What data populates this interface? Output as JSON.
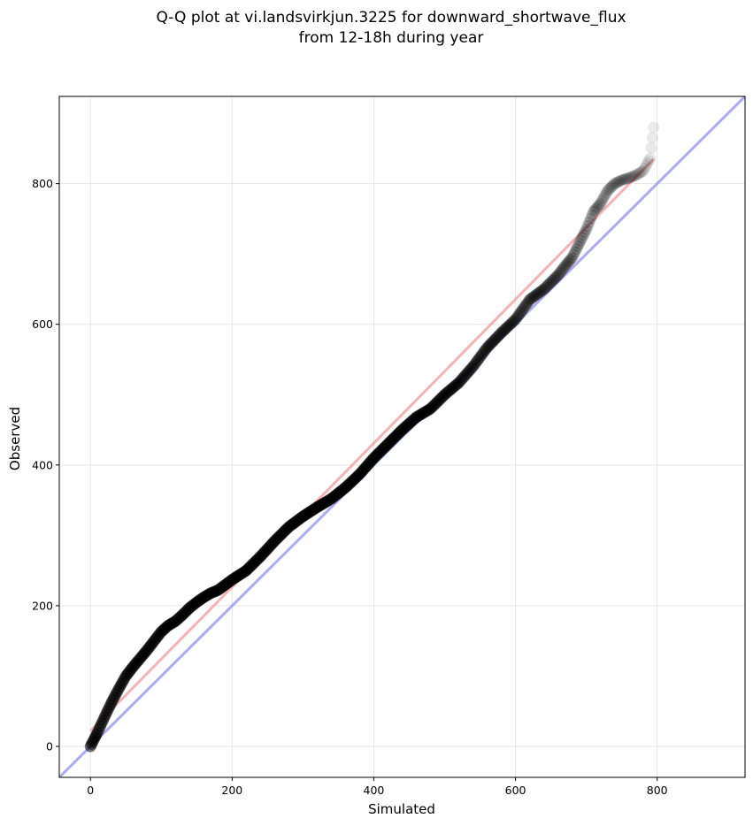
{
  "chart_data": {
    "type": "scatter",
    "title": [
      "Q-Q plot at vi.landsvirkjun.3225 for downward_shortwave_flux",
      "from 12-18h during year"
    ],
    "xlabel": "Simulated",
    "ylabel": "Observed",
    "xlim": [
      -44,
      924
    ],
    "ylim": [
      -44,
      924
    ],
    "xticks": [
      0,
      200,
      400,
      600,
      800
    ],
    "yticks": [
      0,
      200,
      400,
      600,
      800
    ],
    "grid": true,
    "colors": {
      "points": "#000000",
      "fit_line": "#f08080",
      "identity_line": "#8080f0"
    },
    "identity_line": {
      "x": [
        -44,
        924
      ],
      "y": [
        -44,
        924
      ]
    },
    "fit_line": {
      "x": [
        0,
        795
      ],
      "y": [
        22,
        835
      ]
    },
    "quantile_curve": {
      "x": [
        0,
        5,
        10,
        20,
        30,
        40,
        50,
        60,
        70,
        80,
        90,
        100,
        110,
        120,
        130,
        140,
        150,
        160,
        170,
        180,
        200,
        220,
        240,
        260,
        280,
        300,
        320,
        340,
        360,
        380,
        400,
        420,
        440,
        460,
        480,
        500,
        520,
        540,
        560,
        580,
        600,
        620,
        640,
        660,
        670,
        680,
        690,
        700,
        710,
        720,
        730,
        740,
        750,
        760,
        770,
        780,
        790,
        795
      ],
      "y": [
        0,
        10,
        20,
        42,
        63,
        82,
        100,
        113,
        125,
        137,
        150,
        163,
        172,
        178,
        187,
        197,
        205,
        212,
        218,
        222,
        237,
        250,
        270,
        292,
        312,
        327,
        340,
        352,
        368,
        387,
        410,
        430,
        450,
        468,
        480,
        500,
        517,
        540,
        567,
        588,
        607,
        635,
        650,
        670,
        683,
        695,
        715,
        735,
        760,
        772,
        790,
        800,
        805,
        808,
        812,
        818,
        836,
        880
      ]
    }
  }
}
